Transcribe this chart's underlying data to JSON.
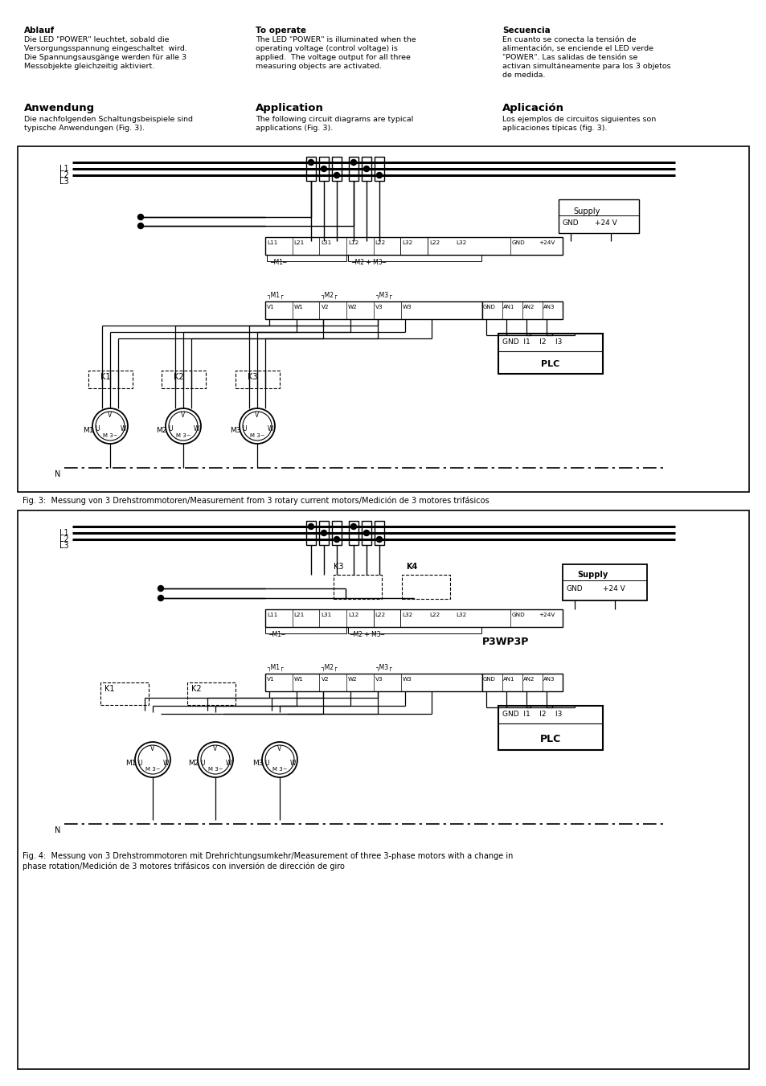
{
  "bg_color": "#ffffff",
  "text_color": "#000000",
  "page_width": 9.54,
  "page_height": 13.51,
  "ablauf_title": "Ablauf",
  "ablauf_body": "Die LED \"POWER\" leuchtet, sobald die\nVersorgungsspannung eingeschaltet  wird.\nDie Spannungsausgänge werden für alle 3\nMessobjekte gleichzeitig aktiviert.",
  "to_operate_title": "To operate",
  "to_operate_body": "The LED \"POWER\" is illuminated when the\noperating voltage (control voltage) is\napplied.  The voltage output for all three\nmeasuring objects are activated.",
  "secuencia_title": "Secuencia",
  "secuencia_body": "En cuanto se conecta la tensión de\nalimentación, se enciende el LED verde\n\"POWER\". Las salidas de tensión se\nactivan simultáneamente para los 3 objetos\nde medida.",
  "anwendung_title": "Anwendung",
  "anwendung_body": "Die nachfolgenden Schaltungsbeispiele sind\ntypische Anwendungen (Fig. 3).",
  "application_title": "Application",
  "application_body": "The following circuit diagrams are typical\napplications (Fig. 3).",
  "aplicacion_title": "Aplicación",
  "aplicacion_body": "Los ejemplos de circuitos siguientes son\naplicaciones típicas (fig. 3).",
  "fig3_caption": "Fig. 3:  Messung von 3 Drehstrommotoren/Measurement from 3 rotary current motors/Medición de 3 motores trifásicos",
  "fig4_caption": "Fig. 4:  Messung von 3 Drehstrommotoren mit Drehrichtungsumkehr/Measurement of three 3-phase motors with a change in\nphase rotation/Medición de 3 motores trifásicos con inversión de dirección de giro"
}
